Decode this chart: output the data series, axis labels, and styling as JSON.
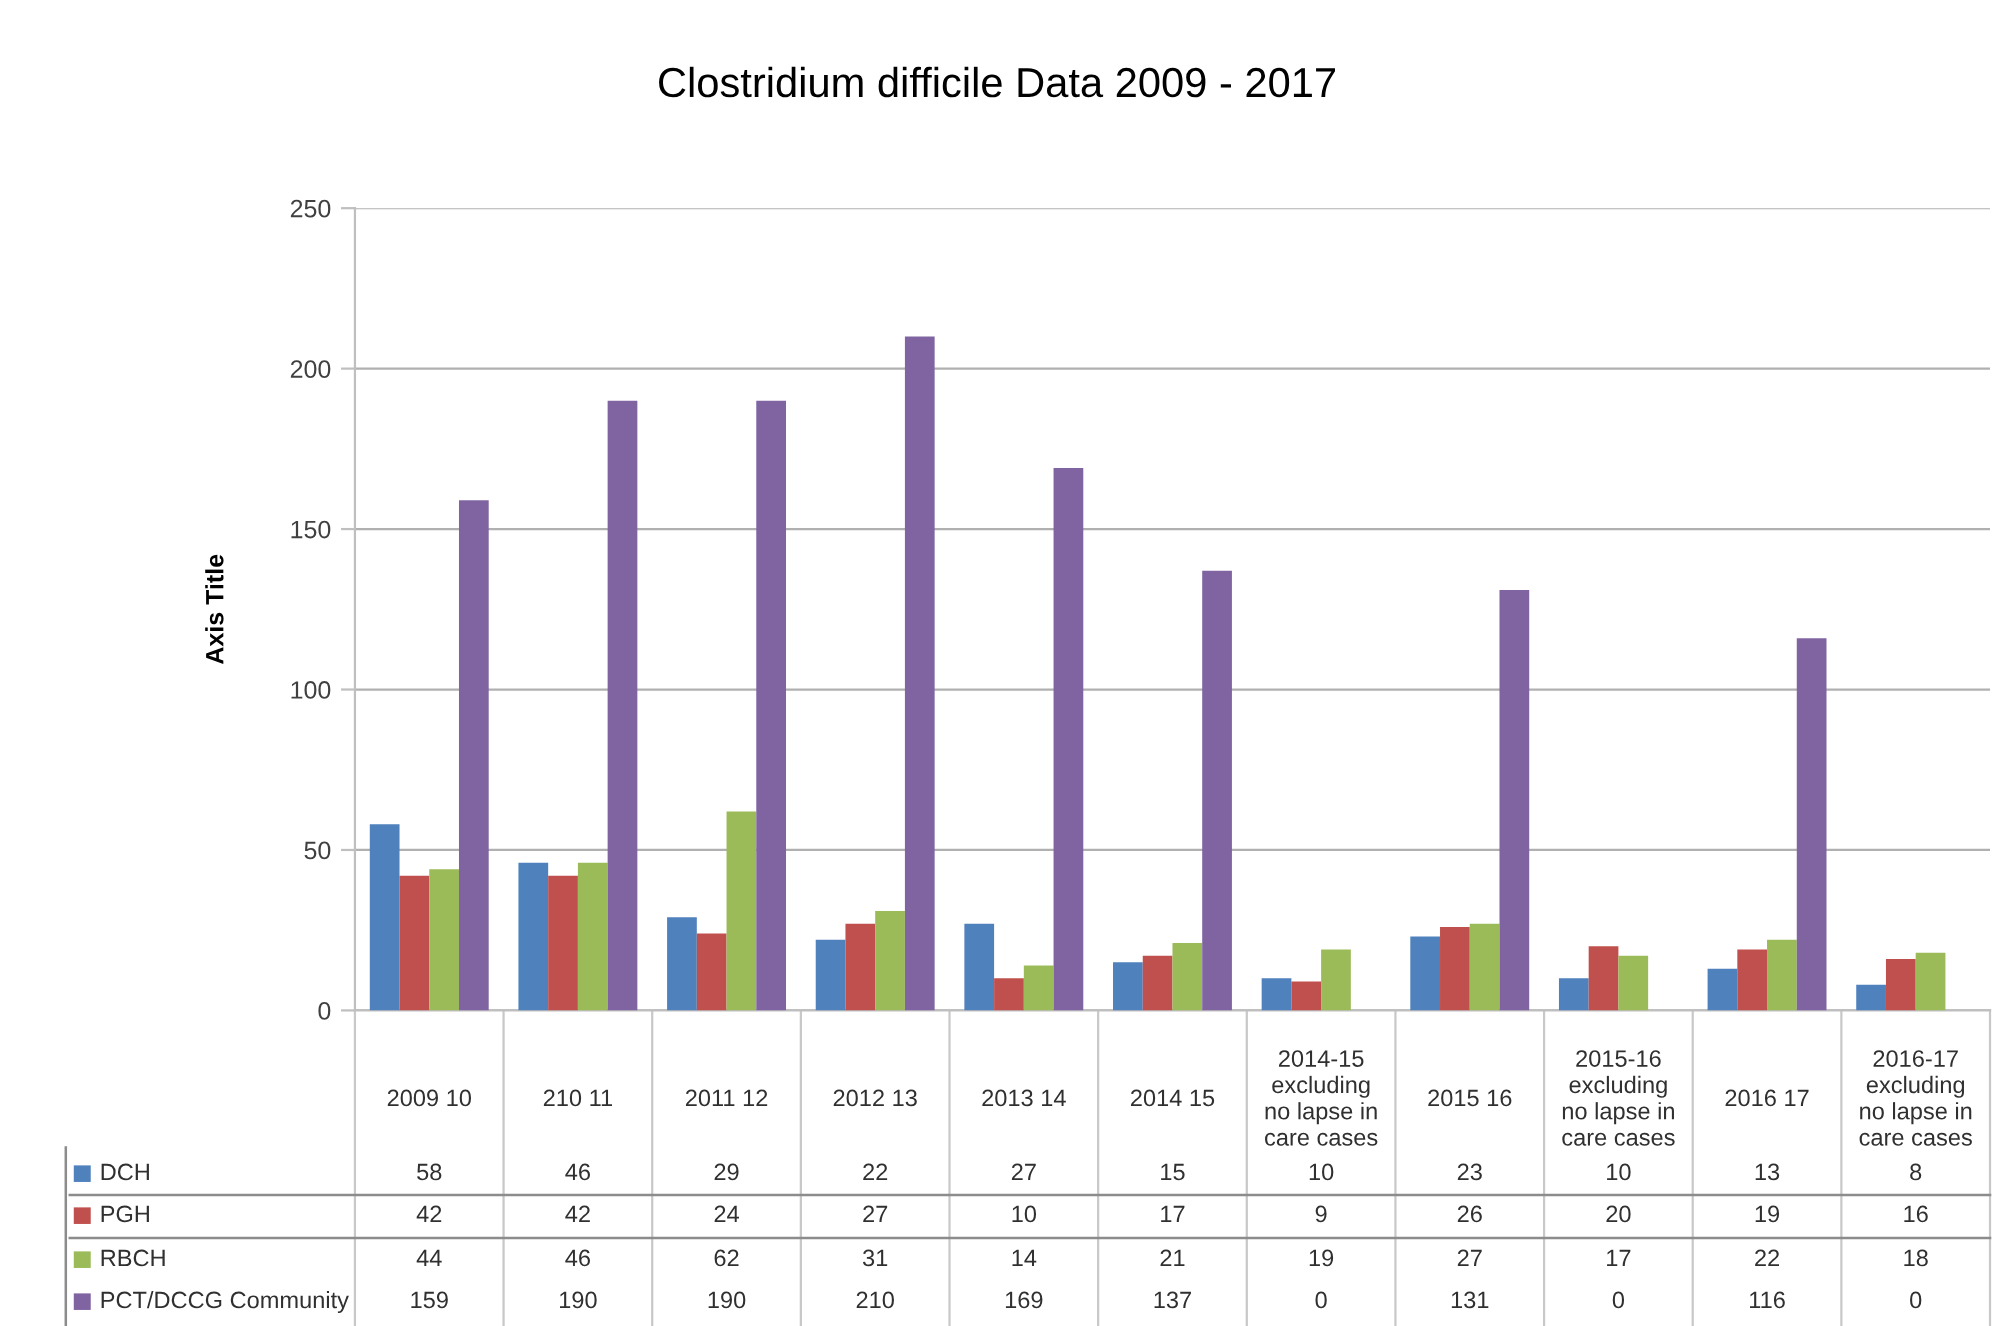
{
  "chart_data": {
    "type": "bar",
    "title": "Clostridium difficile Data 2009 - 2017",
    "ylabel": "Axis Title",
    "categories": [
      "2009 10",
      "210 11",
      "2011 12",
      "2012 13",
      "2013 14",
      "2014 15",
      "2014-15\nexcluding\nno lapse in\ncare cases",
      "2015 16",
      "2015-16\nexcluding\nno lapse in\ncare cases",
      "2016 17",
      "2016-17\nexcluding\nno lapse in\ncare cases"
    ],
    "series": [
      {
        "name": "DCH",
        "color": "#4f81bd",
        "values": [
          58,
          46,
          29,
          22,
          27,
          15,
          10,
          23,
          10,
          13,
          8
        ]
      },
      {
        "name": "PGH",
        "color": "#c0504d",
        "values": [
          42,
          42,
          24,
          27,
          10,
          17,
          9,
          26,
          20,
          19,
          16
        ]
      },
      {
        "name": "RBCH",
        "color": "#9bbb59",
        "values": [
          44,
          46,
          62,
          31,
          14,
          21,
          19,
          27,
          17,
          22,
          18
        ]
      },
      {
        "name": "PCT/DCCG Community",
        "color": "#8064a2",
        "values": [
          159,
          190,
          190,
          210,
          169,
          137,
          0,
          131,
          0,
          116,
          0
        ]
      }
    ],
    "ylim": [
      0,
      250
    ],
    "yticks": [
      0,
      50,
      100,
      150,
      200,
      250
    ],
    "grid": "y",
    "data_labels": true,
    "legend": "bottom left"
  }
}
